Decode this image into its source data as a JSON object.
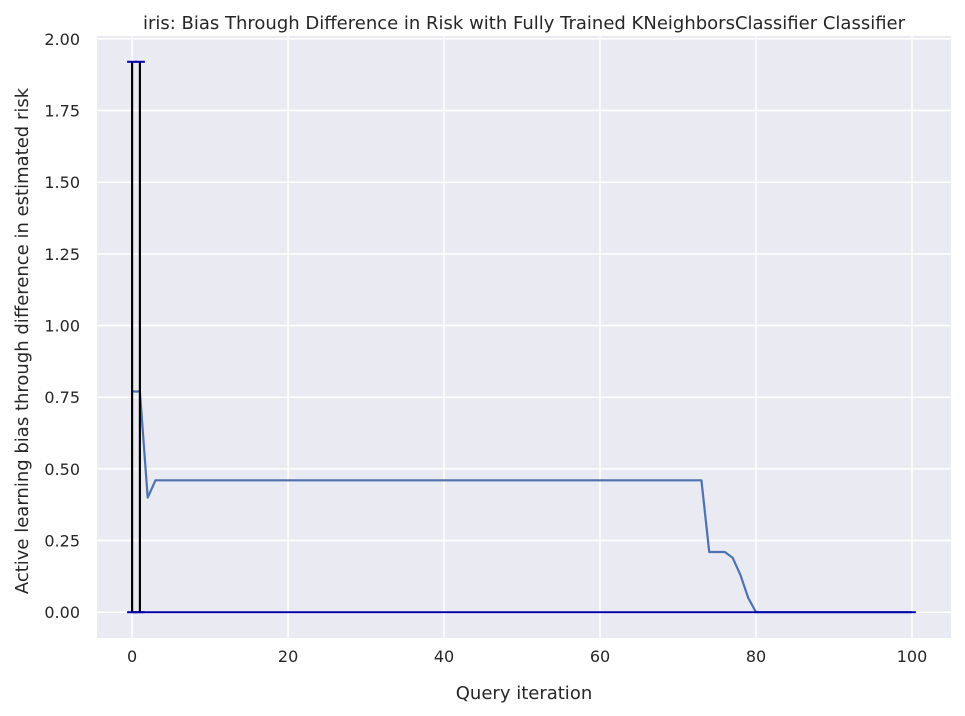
{
  "chart_data": {
    "type": "line",
    "title": "iris: Bias Through Difference in Risk with Fully Trained KNeighborsClassifier Classifier",
    "xlabel": "Query iteration",
    "ylabel": "Active learning bias through difference in estimated risk",
    "xlim": [
      -4.5,
      105
    ],
    "ylim": [
      -0.09,
      2.01
    ],
    "xticks": [
      0,
      20,
      40,
      60,
      80,
      100
    ],
    "xtick_labels": [
      "0",
      "20",
      "40",
      "60",
      "80",
      "100"
    ],
    "yticks": [
      0,
      0.25,
      0.5,
      0.75,
      1.0,
      1.25,
      1.5,
      1.75,
      2.0
    ],
    "ytick_labels": [
      "0.00",
      "0.25",
      "0.50",
      "0.75",
      "1.00",
      "1.25",
      "1.50",
      "1.75",
      "2.00"
    ],
    "grid": true,
    "background": "#eaeaf2",
    "series": [
      {
        "color": "#4c72b0",
        "x": [
          0,
          1,
          2,
          3,
          73,
          74,
          75,
          76,
          77,
          78,
          79,
          80,
          81,
          100
        ],
        "y": [
          0.77,
          0.77,
          0.4,
          0.46,
          0.46,
          0.21,
          0.21,
          0.21,
          0.19,
          0.13,
          0.05,
          0.0,
          0.0,
          0.0
        ]
      }
    ],
    "error_bars": {
      "color": "#000000",
      "cap_color": "#0000aa",
      "items": [
        {
          "x": 0,
          "low": 0.0,
          "high": 1.92
        },
        {
          "x": 1,
          "low": 0.0,
          "high": 1.92
        }
      ]
    },
    "baseline": {
      "y": 0.0,
      "x_start": 0,
      "x_end": 100.5,
      "color": "#0000aa"
    }
  }
}
